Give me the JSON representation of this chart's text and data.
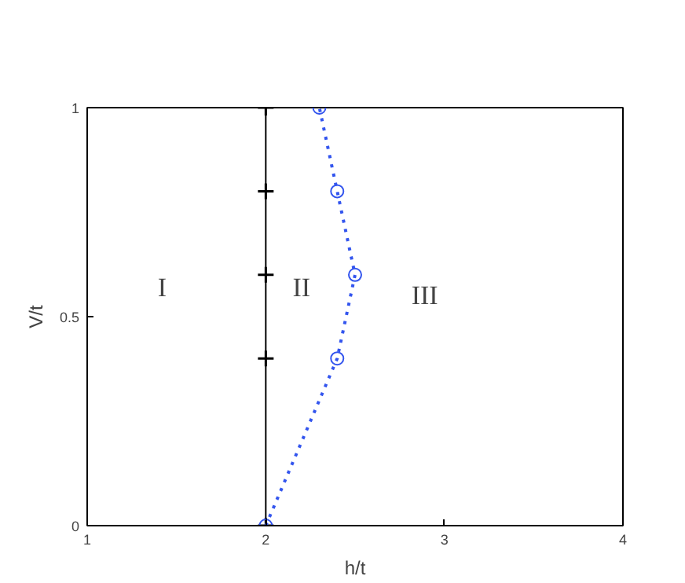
{
  "chart_data": {
    "type": "line",
    "xlabel": "h/t",
    "ylabel": "V/t",
    "xlim": [
      1,
      4
    ],
    "ylim": [
      0,
      1
    ],
    "xticks": [
      1,
      2,
      3,
      4
    ],
    "yticks": [
      0,
      0.5,
      1
    ],
    "grid": false,
    "series": [
      {
        "color": "#000000",
        "x": [
          2,
          2,
          2,
          2,
          2
        ],
        "values": [
          0,
          0.4,
          0.6,
          0.8,
          1
        ],
        "marker": "cross",
        "line_style": "solid"
      },
      {
        "color": "#3355ee",
        "x": [
          2,
          2.4,
          2.5,
          2.4,
          2.3
        ],
        "values": [
          0,
          0.4,
          0.6,
          0.8,
          1
        ],
        "marker": "circle",
        "line_style": "dotted"
      }
    ],
    "annotations": [
      "I",
      "II",
      "III"
    ]
  }
}
